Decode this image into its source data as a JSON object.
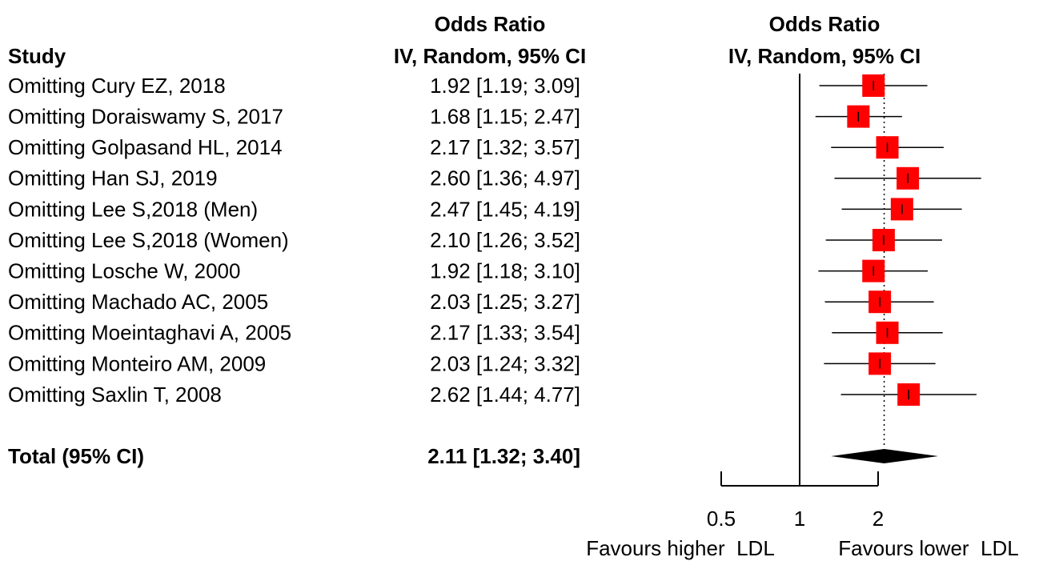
{
  "chart_data": {
    "type": "forest",
    "column_headers": {
      "study": "Study",
      "effect_top": "Odds Ratio",
      "effect_bottom": "IV, Random, 95% CI"
    },
    "categories": [
      "Omitting Cury EZ, 2018",
      "Omitting Doraiswamy S, 2017",
      "Omitting Golpasand HL, 2014",
      "Omitting Han SJ, 2019",
      "Omitting Lee S,2018 (Men)",
      "Omitting Lee S,2018 (Women)",
      "Omitting Losche W, 2000",
      "Omitting Machado AC, 2005",
      "Omitting Moeintaghavi A, 2005",
      "Omitting Monteiro AM, 2009",
      "Omitting Saxlin T, 2008"
    ],
    "values": [
      1.92,
      1.68,
      2.17,
      2.6,
      2.47,
      2.1,
      1.92,
      2.03,
      2.17,
      2.03,
      2.62
    ],
    "lower": [
      1.19,
      1.15,
      1.32,
      1.36,
      1.45,
      1.26,
      1.18,
      1.25,
      1.33,
      1.24,
      1.44
    ],
    "upper": [
      3.09,
      2.47,
      3.57,
      4.97,
      4.19,
      3.52,
      3.1,
      3.27,
      3.54,
      3.32,
      4.77
    ],
    "value_labels": [
      "1.92 [1.19; 3.09]",
      "1.68 [1.15; 2.47]",
      "2.17 [1.32; 3.57]",
      "2.60 [1.36; 4.97]",
      "2.47 [1.45; 4.19]",
      "2.10 [1.26; 3.52]",
      "1.92 [1.18; 3.10]",
      "2.03 [1.25; 3.27]",
      "2.17 [1.33; 3.54]",
      "2.03 [1.24; 3.32]",
      "2.62 [1.44; 4.77]"
    ],
    "total": {
      "label": "Total (95% CI)",
      "value": 2.11,
      "lower": 1.32,
      "upper": 3.4,
      "value_label": "2.11 [1.32; 3.40]"
    },
    "color": "#ff0000",
    "xlim": [
      0.5,
      2
    ],
    "xticks": [
      0.5,
      1,
      2
    ],
    "log_x": true,
    "reference": 1,
    "favours_left": "Favours higher  LDL",
    "favours_right": "Favours lower  LDL"
  }
}
